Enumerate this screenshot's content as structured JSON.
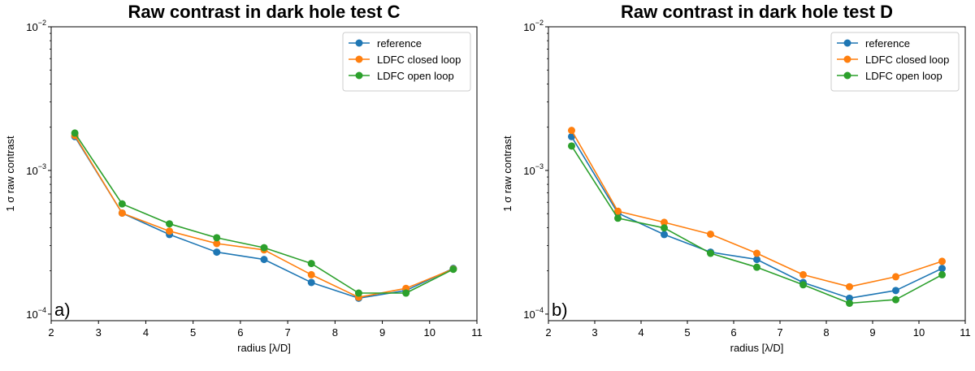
{
  "chart_data": [
    {
      "type": "line",
      "title": "Raw contrast in dark hole test C",
      "panel_label": "a)",
      "xlabel": "radius [λ/D]",
      "ylabel": "1 σ raw contrast",
      "yscale": "log",
      "xlim": [
        2,
        11
      ],
      "ylim": [
        9e-05,
        0.01
      ],
      "xticks": [
        "2",
        "3",
        "4",
        "5",
        "6",
        "7",
        "8",
        "9",
        "10",
        "11"
      ],
      "legend_position": "top-right",
      "x": [
        2.5,
        3.5,
        4.5,
        5.5,
        6.5,
        7.5,
        8.5,
        9.5,
        10.5
      ],
      "series": [
        {
          "name": "reference",
          "color": "#1f77b4",
          "values": [
            0.00172,
            0.000505,
            0.000358,
            0.00027,
            0.00024,
            0.000166,
            0.000129,
            0.000146,
            0.000208
          ]
        },
        {
          "name": "LDFC closed loop",
          "color": "#ff7f0e",
          "values": [
            0.00175,
            0.000505,
            0.000378,
            0.00031,
            0.00028,
            0.000188,
            0.000131,
            0.000151,
            0.000206
          ]
        },
        {
          "name": "LDFC open loop",
          "color": "#2ca02c",
          "values": [
            0.00182,
            0.000585,
            0.000425,
            0.00034,
            0.00029,
            0.000225,
            0.00014,
            0.00014,
            0.000205
          ]
        }
      ]
    },
    {
      "type": "line",
      "title": "Raw contrast in dark hole test D",
      "panel_label": "b)",
      "xlabel": "radius [λ/D]",
      "ylabel": "1 σ raw contrast",
      "yscale": "log",
      "xlim": [
        2,
        11
      ],
      "ylim": [
        9e-05,
        0.01
      ],
      "xticks": [
        "2",
        "3",
        "4",
        "5",
        "6",
        "7",
        "8",
        "9",
        "10",
        "11"
      ],
      "legend_position": "top-right",
      "x": [
        2.5,
        3.5,
        4.5,
        5.5,
        6.5,
        7.5,
        8.5,
        9.5,
        10.5
      ],
      "series": [
        {
          "name": "reference",
          "color": "#1f77b4",
          "values": [
            0.00172,
            0.000505,
            0.000358,
            0.00027,
            0.00024,
            0.000166,
            0.000129,
            0.000146,
            0.000208
          ]
        },
        {
          "name": "LDFC closed loop",
          "color": "#ff7f0e",
          "values": [
            0.0019,
            0.00052,
            0.000435,
            0.00036,
            0.000265,
            0.000188,
            0.000155,
            0.000182,
            0.000233
          ]
        },
        {
          "name": "LDFC open loop",
          "color": "#2ca02c",
          "values": [
            0.00148,
            0.000465,
            0.000398,
            0.000265,
            0.000212,
            0.00016,
            0.000119,
            0.000126,
            0.000188
          ]
        }
      ]
    }
  ]
}
